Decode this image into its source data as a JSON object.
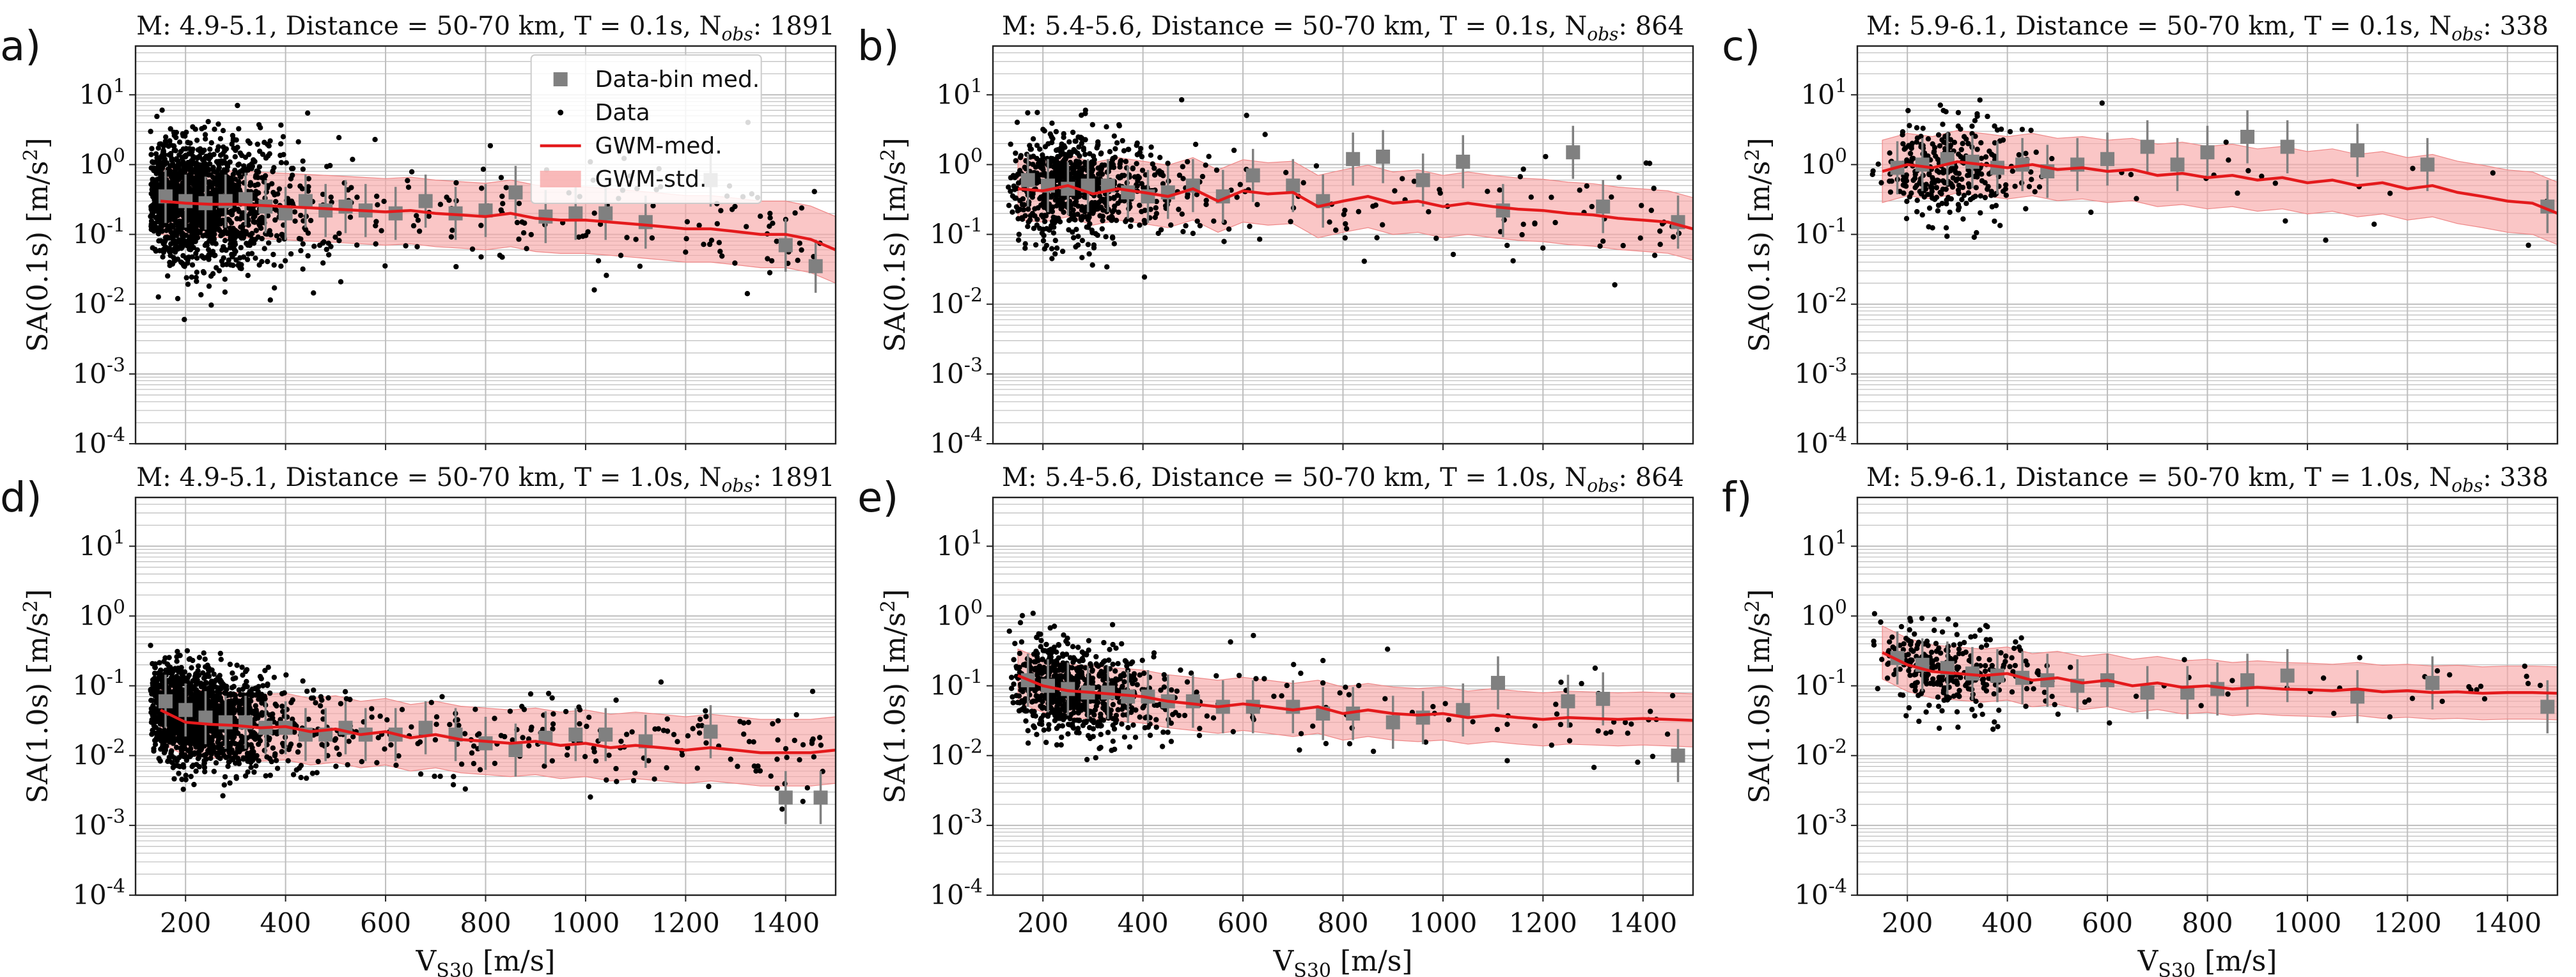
{
  "figure": {
    "description_free": true
  },
  "chart_data": [
    {
      "panel": "a)",
      "type": "scatter",
      "title": {
        "prefix": "M: 4.9-5.1,  Distance = 50-70 km, T = 0.1s, N",
        "sub": "obs",
        "count": ": 1891"
      },
      "ylabel": {
        "main": "SA(0.1s) [m/s",
        "sup": "2",
        "end": "]"
      },
      "xlabel": "",
      "xlim": [
        100,
        1500
      ],
      "ylim": [
        0.0001,
        50
      ],
      "yscale": "log",
      "xticks": [
        200,
        400,
        600,
        800,
        1000,
        1200,
        1400
      ],
      "show_xtick_labels": false,
      "yticks": [
        {
          "base": "10",
          "exp": "1"
        },
        {
          "base": "10",
          "exp": "0"
        },
        {
          "base": "10",
          "exp": "-1"
        },
        {
          "base": "10",
          "exp": "-2"
        },
        {
          "base": "10",
          "exp": "-3"
        },
        {
          "base": "10",
          "exp": "-4"
        }
      ],
      "data_points": {
        "n": 1891,
        "x_mode": 220,
        "x_spread": 0.55,
        "y_median_at_200": 0.3,
        "y_sigma_log10": 0.45,
        "seed": 11
      },
      "gwm_median": {
        "x": [
          150,
          200,
          250,
          300,
          350,
          400,
          450,
          500,
          550,
          600,
          650,
          700,
          750,
          800,
          850,
          900,
          950,
          1000,
          1050,
          1100,
          1150,
          1200,
          1250,
          1300,
          1350,
          1400,
          1450,
          1500
        ],
        "y": [
          0.3,
          0.28,
          0.27,
          0.27,
          0.26,
          0.25,
          0.24,
          0.23,
          0.22,
          0.21,
          0.22,
          0.2,
          0.19,
          0.18,
          0.2,
          0.17,
          0.16,
          0.16,
          0.15,
          0.14,
          0.13,
          0.12,
          0.12,
          0.11,
          0.1,
          0.1,
          0.085,
          0.06
        ]
      },
      "gwm_std_factor": 3.0,
      "bin_medians": {
        "x": [
          160,
          200,
          240,
          280,
          320,
          360,
          400,
          440,
          480,
          520,
          560,
          620,
          680,
          740,
          800,
          860,
          920,
          980,
          1040,
          1120,
          1250,
          1400,
          1460
        ],
        "y": [
          0.35,
          0.3,
          0.28,
          0.3,
          0.32,
          0.25,
          0.2,
          0.3,
          0.22,
          0.25,
          0.22,
          0.2,
          0.3,
          0.2,
          0.22,
          0.4,
          0.18,
          0.2,
          0.2,
          0.15,
          0.6,
          0.07,
          0.035
        ]
      },
      "legend": {
        "items": [
          "Data-bin med.",
          "Data",
          "GWM-med.",
          "GWM-std."
        ],
        "location": "top-right"
      }
    },
    {
      "panel": "b)",
      "type": "scatter",
      "title": {
        "prefix": "M: 5.4-5.6,  Distance = 50-70 km, T = 0.1s, N",
        "sub": "obs",
        "count": ": 864"
      },
      "ylabel": {
        "main": "SA(0.1s) [m/s",
        "sup": "2",
        "end": "]"
      },
      "xlabel": "",
      "xlim": [
        100,
        1500
      ],
      "ylim": [
        0.0001,
        50
      ],
      "yscale": "log",
      "xticks": [
        200,
        400,
        600,
        800,
        1000,
        1200,
        1400
      ],
      "show_xtick_labels": false,
      "yticks": [
        {
          "base": "10",
          "exp": "1"
        },
        {
          "base": "10",
          "exp": "0"
        },
        {
          "base": "10",
          "exp": "-1"
        },
        {
          "base": "10",
          "exp": "-2"
        },
        {
          "base": "10",
          "exp": "-3"
        },
        {
          "base": "10",
          "exp": "-4"
        }
      ],
      "data_points": {
        "n": 864,
        "x_mode": 260,
        "x_spread": 0.5,
        "y_median_at_200": 0.45,
        "y_sigma_log10": 0.38,
        "seed": 23
      },
      "gwm_median": {
        "x": [
          150,
          200,
          250,
          300,
          350,
          400,
          450,
          500,
          550,
          600,
          650,
          700,
          750,
          800,
          850,
          900,
          950,
          1000,
          1050,
          1100,
          1150,
          1200,
          1250,
          1300,
          1350,
          1400,
          1450,
          1500
        ],
        "y": [
          0.45,
          0.42,
          0.5,
          0.38,
          0.45,
          0.4,
          0.35,
          0.45,
          0.3,
          0.42,
          0.38,
          0.4,
          0.25,
          0.3,
          0.35,
          0.28,
          0.3,
          0.25,
          0.28,
          0.25,
          0.23,
          0.22,
          0.2,
          0.19,
          0.17,
          0.16,
          0.15,
          0.12
        ]
      },
      "gwm_std_factor": 2.8,
      "bin_medians": {
        "x": [
          170,
          210,
          250,
          290,
          330,
          370,
          410,
          450,
          500,
          560,
          620,
          700,
          760,
          820,
          880,
          960,
          1040,
          1120,
          1260,
          1320,
          1470
        ],
        "y": [
          0.6,
          0.5,
          0.45,
          0.5,
          0.5,
          0.4,
          0.35,
          0.4,
          0.5,
          0.35,
          0.7,
          0.5,
          0.3,
          1.2,
          1.3,
          0.6,
          1.1,
          0.22,
          1.5,
          0.25,
          0.15
        ]
      },
      "legend": null
    },
    {
      "panel": "c)",
      "type": "scatter",
      "title": {
        "prefix": "M: 5.9-6.1,  Distance = 50-70 km, T = 0.1s, N",
        "sub": "obs",
        "count": ": 338"
      },
      "ylabel": {
        "main": "SA(0.1s) [m/s",
        "sup": "2",
        "end": "]"
      },
      "xlabel": "",
      "xlim": [
        100,
        1500
      ],
      "ylim": [
        0.0001,
        50
      ],
      "yscale": "log",
      "xticks": [
        200,
        400,
        600,
        800,
        1000,
        1200,
        1400
      ],
      "show_xtick_labels": false,
      "yticks": [
        {
          "base": "10",
          "exp": "1"
        },
        {
          "base": "10",
          "exp": "0"
        },
        {
          "base": "10",
          "exp": "-1"
        },
        {
          "base": "10",
          "exp": "-2"
        },
        {
          "base": "10",
          "exp": "-3"
        },
        {
          "base": "10",
          "exp": "-4"
        }
      ],
      "data_points": {
        "n": 338,
        "x_mode": 280,
        "x_spread": 0.45,
        "y_median_at_200": 0.9,
        "y_sigma_log10": 0.35,
        "seed": 37
      },
      "gwm_median": {
        "x": [
          150,
          200,
          250,
          300,
          350,
          400,
          450,
          500,
          550,
          600,
          650,
          700,
          750,
          800,
          850,
          900,
          950,
          1000,
          1050,
          1100,
          1150,
          1200,
          1250,
          1300,
          1350,
          1400,
          1450,
          1500
        ],
        "y": [
          0.8,
          1.0,
          0.9,
          1.1,
          1.0,
          0.9,
          1.0,
          0.85,
          0.9,
          0.8,
          0.85,
          0.7,
          0.75,
          0.65,
          0.7,
          0.6,
          0.65,
          0.55,
          0.6,
          0.5,
          0.55,
          0.45,
          0.5,
          0.4,
          0.35,
          0.3,
          0.28,
          0.2
        ]
      },
      "gwm_std_factor": 2.8,
      "bin_medians": {
        "x": [
          180,
          230,
          280,
          330,
          380,
          430,
          480,
          540,
          600,
          680,
          740,
          800,
          880,
          960,
          1100,
          1240,
          1480
        ],
        "y": [
          0.9,
          1.0,
          1.2,
          1.1,
          0.9,
          1.0,
          0.8,
          1.0,
          1.2,
          1.8,
          1.0,
          1.5,
          2.5,
          1.8,
          1.6,
          1.0,
          0.25
        ]
      },
      "legend": null
    },
    {
      "panel": "d)",
      "type": "scatter",
      "title": {
        "prefix": "M: 4.9-5.1,  Distance = 50-70 km, T = 1.0s, N",
        "sub": "obs",
        "count": ": 1891"
      },
      "ylabel": {
        "main": "SA(1.0s) [m/s",
        "sup": "2",
        "end": "]"
      },
      "xlabel": {
        "main": "V",
        "sub": "S30",
        "end": " [m/s]"
      },
      "xlim": [
        100,
        1500
      ],
      "ylim": [
        0.0001,
        50
      ],
      "yscale": "log",
      "xticks": [
        200,
        400,
        600,
        800,
        1000,
        1200,
        1400
      ],
      "show_xtick_labels": true,
      "yticks": [
        {
          "base": "10",
          "exp": "1"
        },
        {
          "base": "10",
          "exp": "0"
        },
        {
          "base": "10",
          "exp": "-1"
        },
        {
          "base": "10",
          "exp": "-2"
        },
        {
          "base": "10",
          "exp": "-3"
        },
        {
          "base": "10",
          "exp": "-4"
        }
      ],
      "data_points": {
        "n": 1891,
        "x_mode": 220,
        "x_spread": 0.55,
        "y_median_at_200": 0.035,
        "y_sigma_log10": 0.35,
        "seed": 53
      },
      "gwm_median": {
        "x": [
          150,
          200,
          250,
          300,
          350,
          400,
          450,
          500,
          550,
          600,
          650,
          700,
          750,
          800,
          850,
          900,
          950,
          1000,
          1050,
          1100,
          1150,
          1200,
          1250,
          1300,
          1350,
          1400,
          1450,
          1500
        ],
        "y": [
          0.045,
          0.03,
          0.028,
          0.027,
          0.025,
          0.026,
          0.022,
          0.024,
          0.02,
          0.022,
          0.018,
          0.02,
          0.017,
          0.016,
          0.015,
          0.016,
          0.014,
          0.015,
          0.013,
          0.014,
          0.013,
          0.012,
          0.013,
          0.012,
          0.011,
          0.011,
          0.011,
          0.012
        ]
      },
      "gwm_std_factor": 3.0,
      "bin_medians": {
        "x": [
          160,
          200,
          240,
          280,
          320,
          360,
          400,
          440,
          480,
          520,
          560,
          620,
          680,
          740,
          800,
          860,
          920,
          980,
          1040,
          1120,
          1250,
          1400,
          1470
        ],
        "y": [
          0.06,
          0.045,
          0.035,
          0.03,
          0.03,
          0.025,
          0.025,
          0.02,
          0.02,
          0.025,
          0.02,
          0.02,
          0.025,
          0.02,
          0.015,
          0.012,
          0.018,
          0.02,
          0.02,
          0.016,
          0.022,
          0.0025,
          0.0025
        ]
      },
      "legend": null
    },
    {
      "panel": "e)",
      "type": "scatter",
      "title": {
        "prefix": "M: 5.4-5.6,  Distance = 50-70 km, T = 1.0s, N",
        "sub": "obs",
        "count": ": 864"
      },
      "ylabel": {
        "main": "SA(1.0s) [m/s",
        "sup": "2",
        "end": "]"
      },
      "xlabel": {
        "main": "V",
        "sub": "S30",
        "end": " [m/s]"
      },
      "xlim": [
        100,
        1500
      ],
      "ylim": [
        0.0001,
        50
      ],
      "yscale": "log",
      "xticks": [
        200,
        400,
        600,
        800,
        1000,
        1200,
        1400
      ],
      "show_xtick_labels": true,
      "yticks": [
        {
          "base": "10",
          "exp": "1"
        },
        {
          "base": "10",
          "exp": "0"
        },
        {
          "base": "10",
          "exp": "-1"
        },
        {
          "base": "10",
          "exp": "-2"
        },
        {
          "base": "10",
          "exp": "-3"
        },
        {
          "base": "10",
          "exp": "-4"
        }
      ],
      "data_points": {
        "n": 864,
        "x_mode": 260,
        "x_spread": 0.5,
        "y_median_at_200": 0.1,
        "y_sigma_log10": 0.33,
        "seed": 71
      },
      "gwm_median": {
        "x": [
          150,
          200,
          250,
          300,
          350,
          400,
          450,
          500,
          550,
          600,
          650,
          700,
          750,
          800,
          850,
          900,
          950,
          1000,
          1050,
          1100,
          1150,
          1200,
          1250,
          1300,
          1350,
          1400,
          1450,
          1500
        ],
        "y": [
          0.14,
          0.1,
          0.085,
          0.08,
          0.075,
          0.07,
          0.06,
          0.055,
          0.05,
          0.055,
          0.05,
          0.045,
          0.05,
          0.04,
          0.045,
          0.04,
          0.038,
          0.04,
          0.035,
          0.038,
          0.035,
          0.033,
          0.035,
          0.034,
          0.033,
          0.034,
          0.033,
          0.032
        ]
      },
      "gwm_std_factor": 2.4,
      "bin_medians": {
        "x": [
          170,
          210,
          250,
          290,
          330,
          370,
          410,
          450,
          500,
          560,
          620,
          700,
          760,
          820,
          900,
          960,
          1040,
          1110,
          1250,
          1320,
          1470
        ],
        "y": [
          0.12,
          0.1,
          0.09,
          0.08,
          0.08,
          0.07,
          0.07,
          0.06,
          0.06,
          0.05,
          0.05,
          0.05,
          0.04,
          0.04,
          0.03,
          0.035,
          0.045,
          0.11,
          0.06,
          0.065,
          0.01
        ]
      },
      "legend": null
    },
    {
      "panel": "f)",
      "type": "scatter",
      "title": {
        "prefix": "M: 5.9-6.1,  Distance = 50-70 km, T = 1.0s, N",
        "sub": "obs",
        "count": ": 338"
      },
      "ylabel": {
        "main": "SA(1.0s) [m/s",
        "sup": "2",
        "end": "]"
      },
      "xlabel": {
        "main": "V",
        "sub": "S30",
        "end": " [m/s]"
      },
      "xlim": [
        100,
        1500
      ],
      "ylim": [
        0.0001,
        50
      ],
      "yscale": "log",
      "xticks": [
        200,
        400,
        600,
        800,
        1000,
        1200,
        1400
      ],
      "show_xtick_labels": true,
      "yticks": [
        {
          "base": "10",
          "exp": "1"
        },
        {
          "base": "10",
          "exp": "0"
        },
        {
          "base": "10",
          "exp": "-1"
        },
        {
          "base": "10",
          "exp": "-2"
        },
        {
          "base": "10",
          "exp": "-3"
        },
        {
          "base": "10",
          "exp": "-4"
        }
      ],
      "data_points": {
        "n": 338,
        "x_mode": 270,
        "x_spread": 0.45,
        "y_median_at_200": 0.2,
        "y_sigma_log10": 0.3,
        "seed": 89
      },
      "gwm_median": {
        "x": [
          150,
          200,
          250,
          300,
          350,
          400,
          450,
          500,
          550,
          600,
          650,
          700,
          750,
          800,
          850,
          900,
          950,
          1000,
          1050,
          1100,
          1150,
          1200,
          1250,
          1300,
          1350,
          1400,
          1450,
          1500
        ],
        "y": [
          0.3,
          0.2,
          0.16,
          0.15,
          0.14,
          0.15,
          0.12,
          0.13,
          0.11,
          0.12,
          0.1,
          0.11,
          0.095,
          0.1,
          0.09,
          0.095,
          0.09,
          0.088,
          0.085,
          0.09,
          0.082,
          0.085,
          0.08,
          0.082,
          0.078,
          0.08,
          0.08,
          0.078
        ]
      },
      "gwm_std_factor": 2.4,
      "bin_medians": {
        "x": [
          180,
          230,
          280,
          330,
          380,
          430,
          480,
          540,
          600,
          680,
          760,
          820,
          880,
          960,
          1100,
          1250,
          1480
        ],
        "y": [
          0.25,
          0.2,
          0.18,
          0.15,
          0.14,
          0.13,
          0.12,
          0.1,
          0.12,
          0.08,
          0.08,
          0.09,
          0.12,
          0.14,
          0.07,
          0.11,
          0.05
        ]
      },
      "legend": null
    }
  ],
  "colors": {
    "data_points": "#000000",
    "gwm_median": "#e41a1c",
    "gwm_std_fill": "#f7a8a8",
    "bin_median": "#808080",
    "grid": "#bdbdbd",
    "frame": "#222222"
  }
}
